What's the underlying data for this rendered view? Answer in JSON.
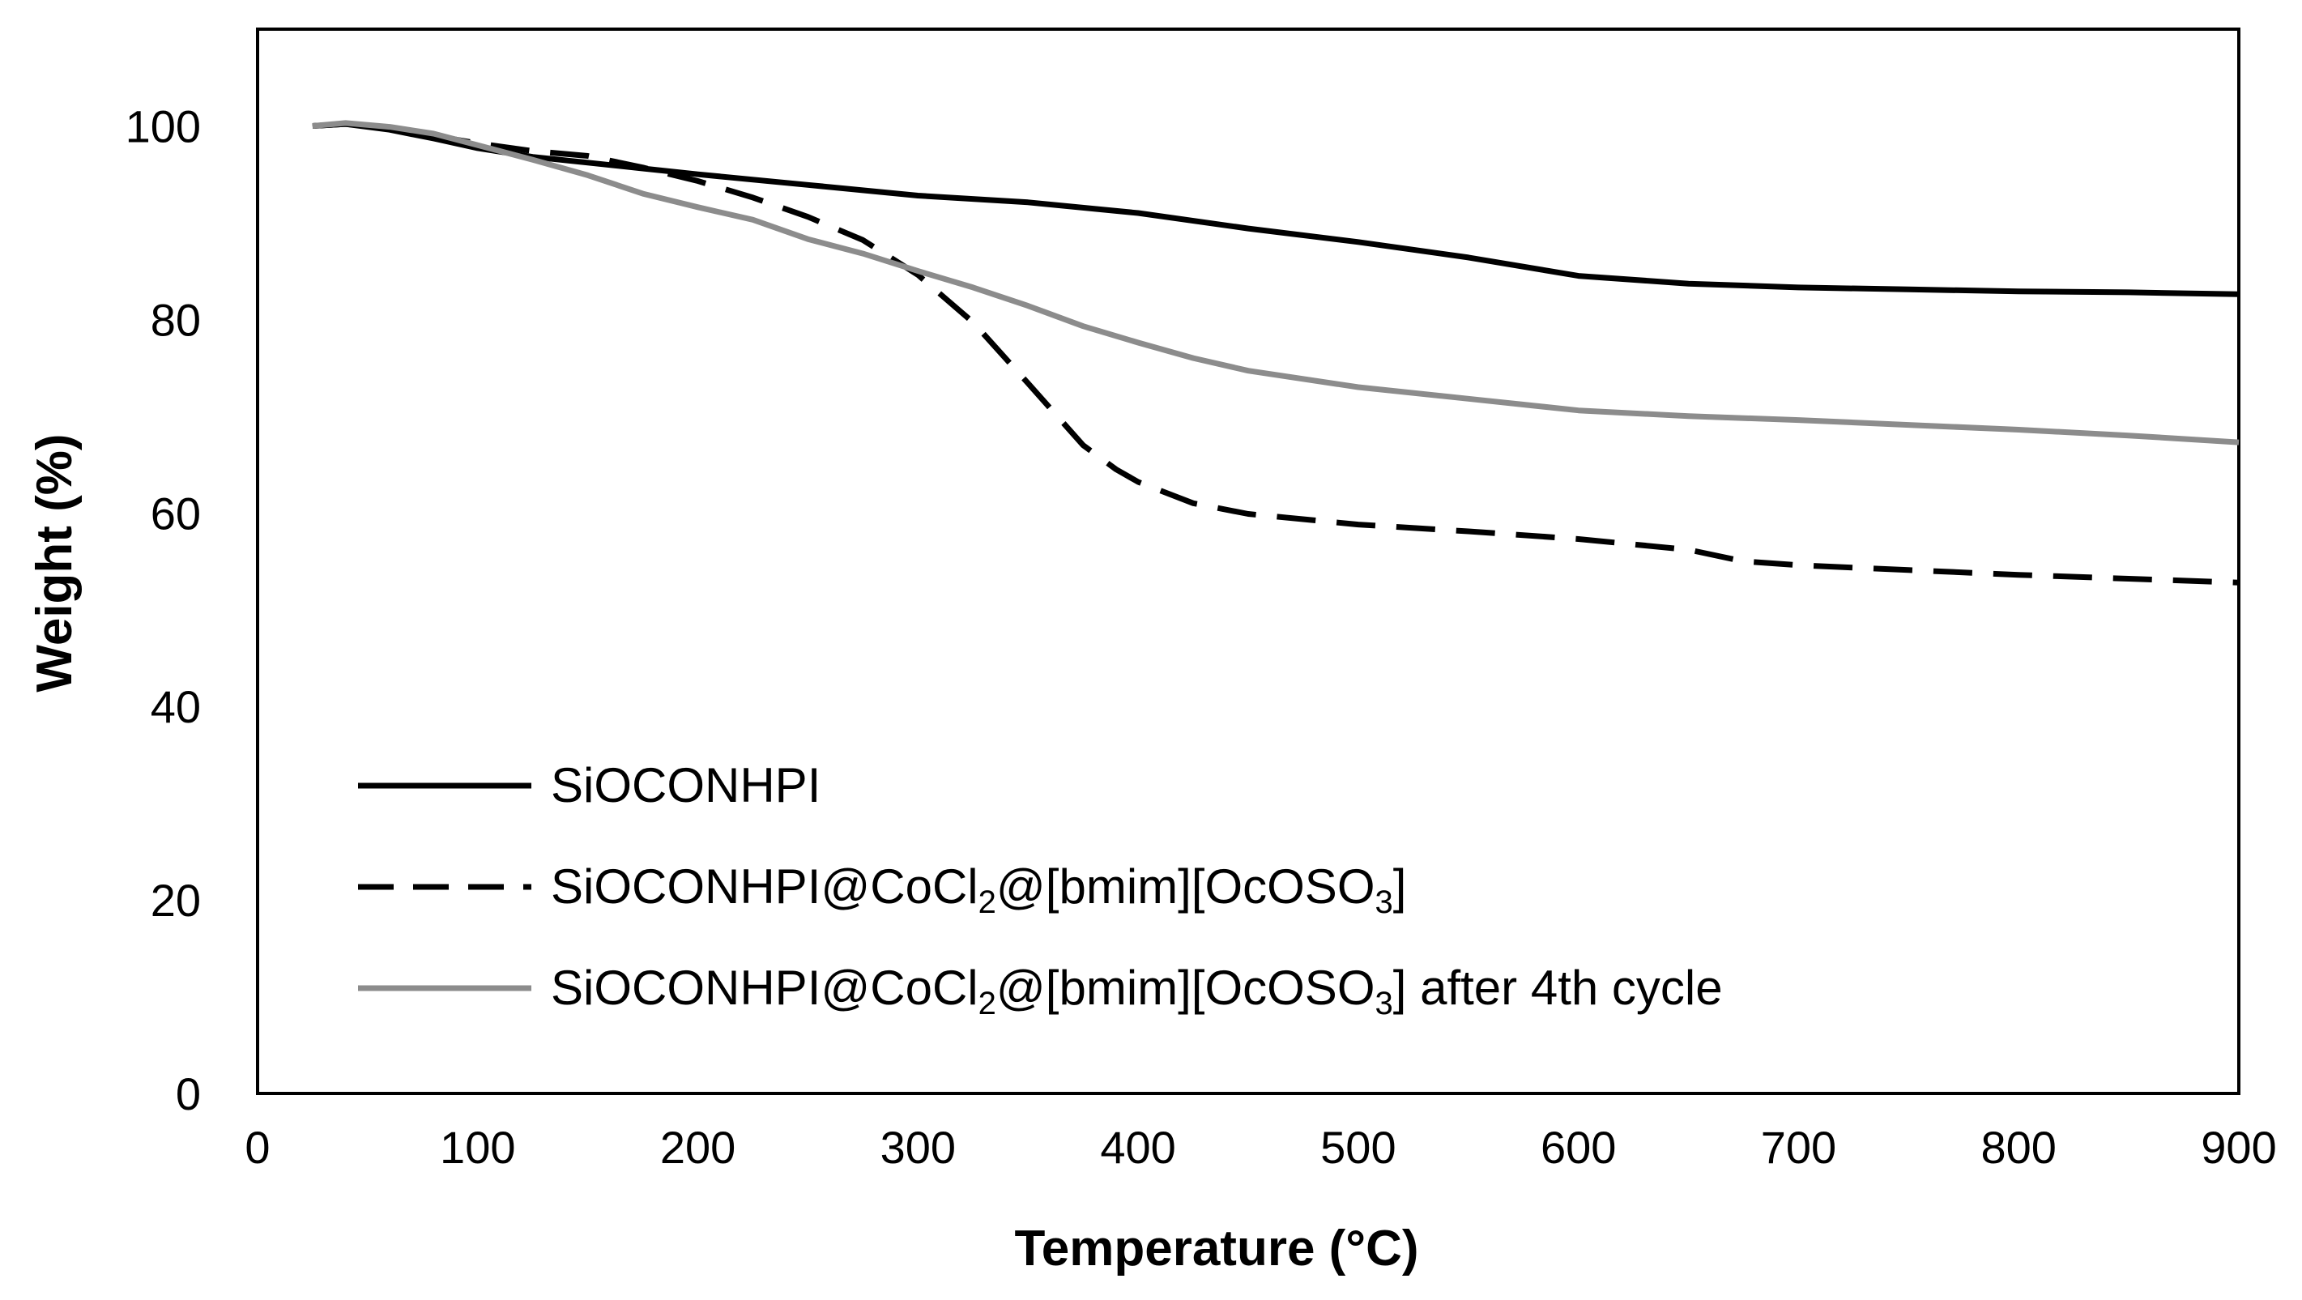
{
  "chart_data": {
    "type": "line",
    "title": "",
    "xlabel": "Temperature (°C)",
    "ylabel": "Weight (%)",
    "xlim": [
      0,
      900
    ],
    "ylim": [
      0,
      110
    ],
    "xticks": [
      0,
      100,
      200,
      300,
      400,
      500,
      600,
      700,
      800,
      900
    ],
    "yticks": [
      0,
      20,
      40,
      60,
      80,
      100
    ],
    "grid": false,
    "legend_position": "bottom-left",
    "series": [
      {
        "name": "SiOCONHPI",
        "label_main": "SiOCONHPI",
        "label_sub": "",
        "label_mid": "",
        "label_sub2": "",
        "label_end": "",
        "color": "#000000",
        "dash": "solid",
        "x": [
          25,
          40,
          60,
          80,
          100,
          125,
          150,
          175,
          200,
          250,
          300,
          350,
          400,
          450,
          500,
          550,
          600,
          650,
          700,
          750,
          800,
          850,
          900
        ],
        "y": [
          100,
          100.2,
          99.6,
          98.7,
          97.7,
          96.8,
          96.2,
          95.6,
          95.0,
          93.9,
          92.8,
          92.1,
          91.0,
          89.4,
          88.0,
          86.4,
          84.5,
          83.7,
          83.3,
          83.1,
          82.9,
          82.8,
          82.6
        ]
      },
      {
        "name": "SiOCONHPI@CoCl2@[bmim][OcOSO3]",
        "label_main": "SiOCONHPI@CoCl",
        "label_sub": "2",
        "label_mid": "@[bmim][OcOSO",
        "label_sub2": "3",
        "label_end": "]",
        "color": "#000000",
        "dash": "dashed",
        "x": [
          25,
          40,
          60,
          80,
          100,
          125,
          150,
          175,
          200,
          225,
          250,
          275,
          300,
          325,
          350,
          375,
          390,
          400,
          425,
          450,
          500,
          550,
          600,
          650,
          675,
          700,
          750,
          800,
          850,
          900
        ],
        "y": [
          100,
          100.2,
          99.8,
          99.0,
          98.2,
          97.4,
          96.9,
          95.7,
          94.3,
          92.6,
          90.6,
          88.2,
          84.6,
          79.7,
          73.4,
          67.0,
          64.5,
          63.2,
          61.0,
          59.9,
          58.8,
          58.1,
          57.3,
          56.2,
          55.0,
          54.6,
          54.1,
          53.6,
          53.2,
          52.8
        ]
      },
      {
        "name": "SiOCONHPI@CoCl2@[bmim][OcOSO3] after 4th cycle",
        "label_main": "SiOCONHPI@CoCl",
        "label_sub": "2",
        "label_mid": "@[bmim][OcOSO",
        "label_sub2": "3",
        "label_end": "] after 4th cycle",
        "color": "#8c8c8c",
        "dash": "solid",
        "x": [
          25,
          40,
          60,
          80,
          100,
          125,
          150,
          175,
          200,
          225,
          250,
          275,
          300,
          325,
          350,
          375,
          400,
          425,
          450,
          500,
          550,
          600,
          650,
          700,
          750,
          800,
          850,
          900
        ],
        "y": [
          100,
          100.3,
          99.9,
          99.2,
          98.0,
          96.5,
          94.9,
          93.0,
          91.6,
          90.3,
          88.3,
          86.8,
          85.0,
          83.3,
          81.4,
          79.3,
          77.6,
          76.0,
          74.7,
          73.0,
          71.8,
          70.6,
          70.0,
          69.6,
          69.1,
          68.6,
          68.0,
          67.3
        ]
      }
    ]
  }
}
